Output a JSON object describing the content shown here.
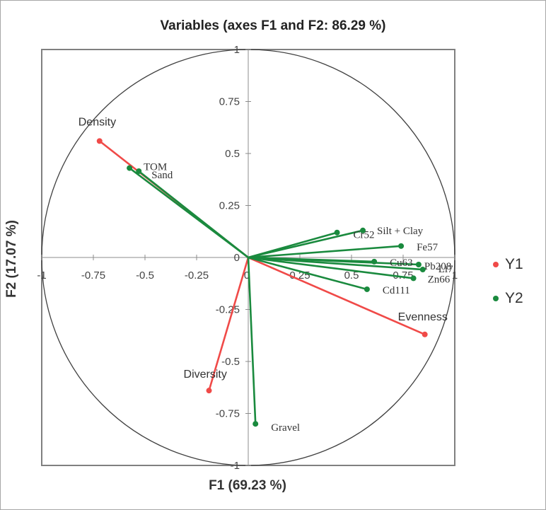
{
  "chart_data": {
    "type": "scatter",
    "subtype": "pca-correlation-circle",
    "title": "Variables (axes F1 and F2: 86.29 %)",
    "xlabel": "F1 (69.23 %)",
    "ylabel": "F2 (17.07 %)",
    "xlim": [
      -1,
      1
    ],
    "ylim": [
      -1,
      1
    ],
    "xticks": [
      "-1",
      "-0.75",
      "-0.5",
      "-0.25",
      "0",
      "0.25",
      "0.5",
      "0.75",
      "1"
    ],
    "yticks": [
      "-1",
      "-0.75",
      "-0.5",
      "-0.25",
      "0",
      "0.25",
      "0.5",
      "0.75",
      "1"
    ],
    "legend_position": "right",
    "grid": false,
    "unit_circle": true,
    "series": [
      {
        "name": "Y1",
        "color": "#f04a48",
        "points": [
          {
            "label": "Density",
            "x": -0.72,
            "y": 0.56
          },
          {
            "label": "Diversity",
            "x": -0.19,
            "y": -0.64
          },
          {
            "label": "Evenness",
            "x": 0.855,
            "y": -0.37
          }
        ]
      },
      {
        "name": "Y2",
        "color": "#1a8a3e",
        "points": [
          {
            "label": "TOM",
            "x": -0.575,
            "y": 0.43
          },
          {
            "label": "Sand",
            "x": -0.53,
            "y": 0.415
          },
          {
            "label": "Cr52",
            "x": 0.43,
            "y": 0.12
          },
          {
            "label": "Silt + Clay",
            "x": 0.555,
            "y": 0.13
          },
          {
            "label": "Fe57",
            "x": 0.74,
            "y": 0.055
          },
          {
            "label": "Cu63",
            "x": 0.61,
            "y": -0.02
          },
          {
            "label": "Pb208",
            "x": 0.825,
            "y": -0.034
          },
          {
            "label": "Li7",
            "x": 0.845,
            "y": -0.058
          },
          {
            "label": "Zn66",
            "x": 0.8,
            "y": -0.1
          },
          {
            "label": "Cd111",
            "x": 0.575,
            "y": -0.153
          },
          {
            "label": "Gravel",
            "x": 0.035,
            "y": -0.8
          }
        ]
      }
    ]
  },
  "legend": [
    {
      "label": "Y1",
      "color": "#f04a48"
    },
    {
      "label": "Y2",
      "color": "#1a8a3e"
    }
  ]
}
